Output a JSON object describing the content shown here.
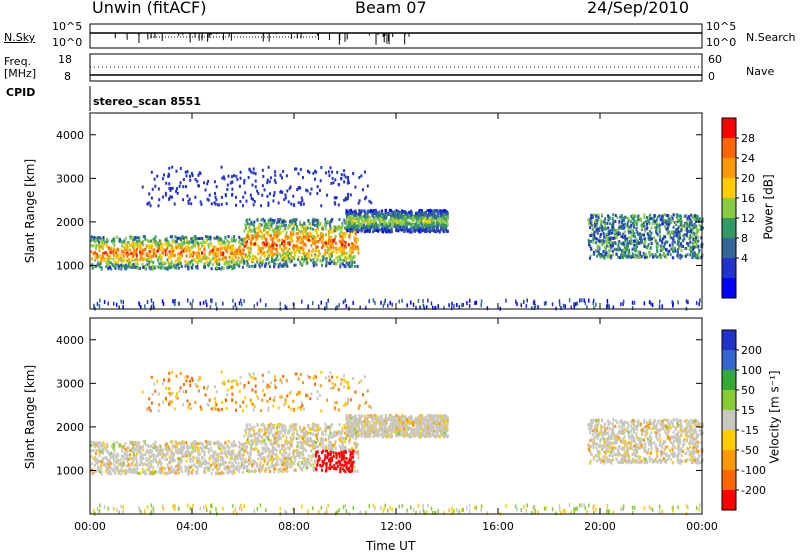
{
  "header": {
    "station": "Unwin (fitACF)",
    "beam": "Beam 07",
    "date": "24/Sep/2010"
  },
  "noise_panel": {
    "left_label": "N.Sky",
    "right_label": "N.Search",
    "ticks_left": [
      "10^5",
      "10^0"
    ],
    "ticks_right": [
      "10^5",
      "10^0"
    ]
  },
  "freq_panel": {
    "left_label_1": "Freq.",
    "left_label_2": "[MHz]",
    "right_label": "Nave",
    "ticks_left": [
      "18",
      "8"
    ],
    "ticks_right": [
      "60",
      "0"
    ]
  },
  "cpid": {
    "label": "CPID",
    "value": "stereo_scan 8551"
  },
  "chart_data": [
    {
      "type": "heatmap",
      "quantity": "Power",
      "ylabel": "Slant Range [km]",
      "ylim": [
        0,
        4500
      ],
      "y_ticks": [
        "1000",
        "2000",
        "3000",
        "4000"
      ],
      "xlim_hours": [
        0,
        24
      ],
      "colorbar_label": "Power [dB]",
      "colorbar_ticks": [
        "28",
        "24",
        "20",
        "16",
        "12",
        "8",
        "4"
      ],
      "colorbar_colors": [
        "#ff0000",
        "#ff6600",
        "#ff9900",
        "#ffcc00",
        "#88cc44",
        "#339966",
        "#336699",
        "#2233cc",
        "#0000ff"
      ],
      "echo_bands": [
        {
          "start": 0,
          "end": 6,
          "range_low": 950,
          "range_high": 1700,
          "level": "high"
        },
        {
          "start": 6,
          "end": 10.5,
          "range_low": 1000,
          "range_high": 2100,
          "level": "high"
        },
        {
          "start": 10,
          "end": 14,
          "range_low": 1800,
          "range_high": 2300,
          "level": "medium"
        },
        {
          "start": 19.5,
          "end": 24,
          "range_low": 1200,
          "range_high": 2200,
          "level": "low"
        }
      ]
    },
    {
      "type": "heatmap",
      "quantity": "Velocity",
      "ylabel": "Slant Range [km]",
      "ylim": [
        0,
        4500
      ],
      "y_ticks": [
        "1000",
        "2000",
        "3000",
        "4000"
      ],
      "xlim_hours": [
        0,
        24
      ],
      "colorbar_label": "Velocity [m s⁻¹]",
      "colorbar_ticks": [
        "200",
        "100",
        "50",
        "15",
        "-15",
        "-50",
        "-100",
        "-200"
      ],
      "colorbar_colors": [
        "#2233cc",
        "#3366cc",
        "#33aa33",
        "#88cc33",
        "#c8c8c0",
        "#ffcc00",
        "#ff9900",
        "#ff6600",
        "#ff0000"
      ],
      "ground_scatter_color": "#c8c8c0"
    }
  ],
  "x_axis": {
    "label": "Time UT",
    "ticks": [
      "00:00",
      "04:00",
      "08:00",
      "12:00",
      "16:00",
      "20:00",
      "00:00"
    ]
  }
}
